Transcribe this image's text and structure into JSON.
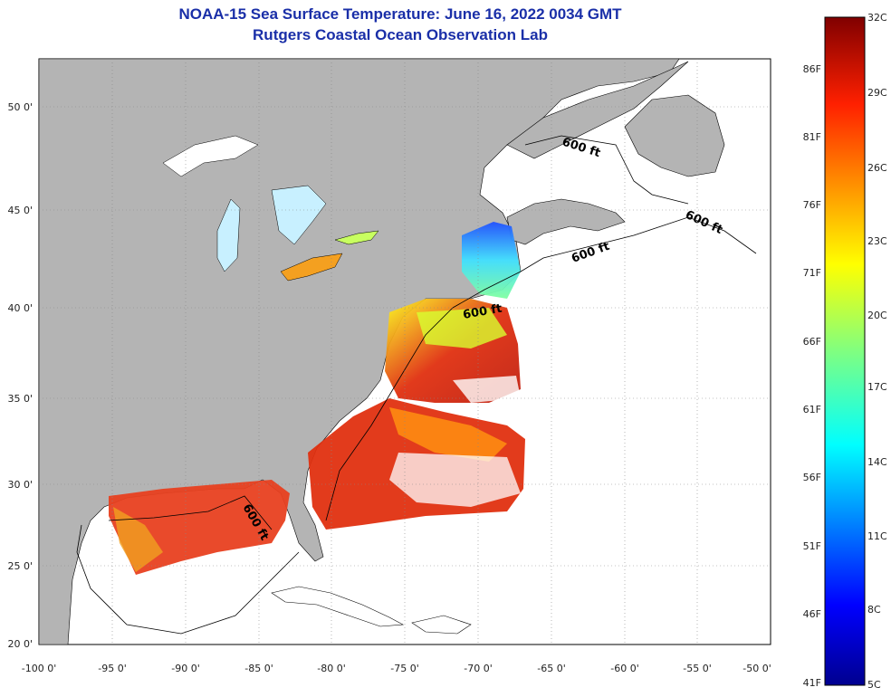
{
  "title": "NOAA-15 Sea Surface Temperature:  June 16, 2022 0034 GMT",
  "subtitle": "Rutgers Coastal Ocean Observation Lab",
  "map": {
    "lon_labels": [
      "-100 0'",
      "-95 0'",
      "-90 0'",
      "-85 0'",
      "-80 0'",
      "-75 0'",
      "-70 0'",
      "-65 0'",
      "-60 0'",
      "-55 0'",
      "-50 0'"
    ],
    "lat_labels": [
      "50 0'",
      "45 0'",
      "40 0'",
      "35 0'",
      "30 0'",
      "25 0'",
      "20 0'"
    ],
    "isobath_labels": [
      "600 ft",
      "600 ft",
      "600 ft",
      "600 ft",
      "600 ft"
    ],
    "land_color": "#b4b4b4",
    "ocean_color": "#ffffff"
  },
  "colorbar": {
    "celsius_labels": [
      "32C",
      "29C",
      "26C",
      "23C",
      "20C",
      "17C",
      "14C",
      "11C",
      "8C",
      "5C"
    ],
    "fahrenheit_labels": [
      "86F",
      "81F",
      "76F",
      "71F",
      "66F",
      "61F",
      "56F",
      "51F",
      "46F",
      "41F"
    ],
    "colors": [
      "#00008f",
      "#0000ff",
      "#0080ff",
      "#00ffff",
      "#80ff80",
      "#ffff00",
      "#ff8000",
      "#ff0000",
      "#800000"
    ]
  }
}
